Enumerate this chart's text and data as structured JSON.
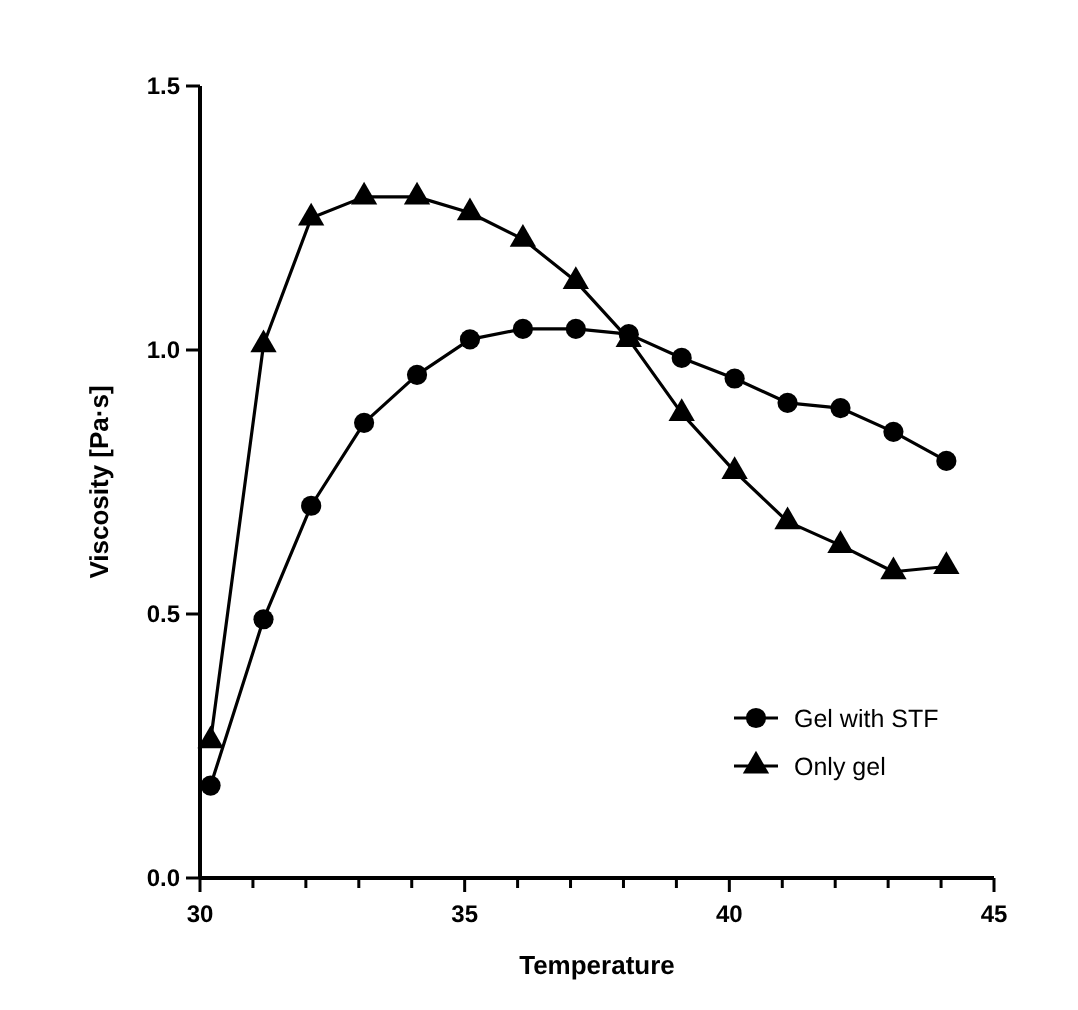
{
  "chart_data": {
    "type": "line",
    "xlabel": "Temperature",
    "ylabel": "Viscosity [Pa·s]",
    "xlim": [
      30,
      45
    ],
    "ylim": [
      0,
      1.5
    ],
    "xticks": [
      30,
      {
        "value": 31,
        "label": null
      },
      {
        "value": 32,
        "label": null
      },
      {
        "value": 33,
        "label": null
      },
      {
        "value": 34,
        "label": null
      },
      35,
      {
        "value": 36,
        "label": null
      },
      {
        "value": 37,
        "label": null
      },
      {
        "value": 38,
        "label": null
      },
      {
        "value": 39,
        "label": null
      },
      40,
      {
        "value": 41,
        "label": null
      },
      {
        "value": 42,
        "label": null
      },
      {
        "value": 43,
        "label": null
      },
      {
        "value": 44,
        "label": null
      },
      45
    ],
    "yticks": [
      {
        "value": 0,
        "label": "0.0"
      },
      0.5,
      {
        "value": 1,
        "label": "1.0"
      },
      1.5
    ],
    "legend": "bottom right",
    "grid": false,
    "line_style": "solid",
    "series": [
      {
        "name": "Gel with STF",
        "color": "#000000",
        "marker": "circle",
        "x": [
          30.2,
          31.2,
          32.1,
          33.1,
          34.1,
          35.1,
          36.1,
          37.1,
          38.1,
          39.1,
          40.1,
          41.1,
          42.1,
          43.1,
          44.1
        ],
        "values": [
          0.175,
          0.49,
          0.705,
          0.862,
          0.953,
          1.02,
          1.04,
          1.04,
          1.03,
          0.985,
          0.946,
          0.9,
          0.89,
          0.845,
          0.79
        ]
      },
      {
        "name": "Only gel",
        "color": "#000000",
        "marker": "triangle",
        "x": [
          30.2,
          31.2,
          32.1,
          33.1,
          34.1,
          35.1,
          36.1,
          37.1,
          38.1,
          39.1,
          40.1,
          41.1,
          42.1,
          43.1,
          44.1
        ],
        "values": [
          0.26,
          1.01,
          1.25,
          1.29,
          1.29,
          1.26,
          1.21,
          1.13,
          1.02,
          0.88,
          0.77,
          0.675,
          0.63,
          0.58,
          0.59
        ]
      }
    ]
  }
}
